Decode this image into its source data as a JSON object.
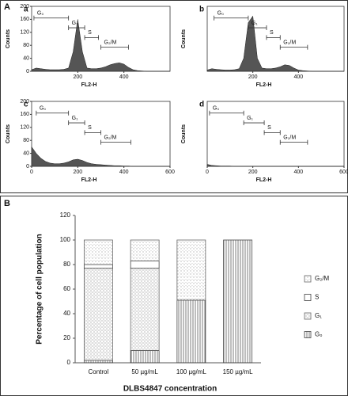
{
  "panel_labels": [
    "A",
    "B"
  ],
  "chart_data": [
    {
      "type": "area",
      "panel": "a",
      "xlabel": "FL2-H",
      "ylabel": "Counts",
      "color": "#555555",
      "x": [
        0,
        20,
        40,
        60,
        80,
        100,
        120,
        140,
        160,
        180,
        200,
        220,
        240,
        260,
        280,
        300,
        320,
        340,
        360,
        380,
        400,
        420,
        440,
        460,
        480,
        500,
        520,
        540,
        560,
        580,
        600
      ],
      "values": [
        5,
        10,
        8,
        6,
        5,
        5,
        5,
        6,
        10,
        60,
        160,
        60,
        10,
        8,
        8,
        10,
        14,
        20,
        24,
        26,
        22,
        12,
        5,
        2,
        1,
        0,
        0,
        0,
        0,
        0,
        0
      ],
      "xlim": [
        0,
        600
      ],
      "ylim": [
        0,
        200
      ],
      "xticks": [
        200,
        400
      ],
      "yticks": [
        0,
        40,
        80,
        120,
        160,
        200
      ],
      "gates": [
        {
          "label": "G₀",
          "range": [
            10,
            160
          ]
        },
        {
          "label": "G₁",
          "range": [
            160,
            230
          ]
        },
        {
          "label": "S",
          "range": [
            230,
            290
          ]
        },
        {
          "label": "G₂/M",
          "range": [
            300,
            420
          ]
        }
      ]
    },
    {
      "type": "area",
      "panel": "b",
      "xlabel": "FL2-H",
      "ylabel": "Counts",
      "color": "#555555",
      "x": [
        0,
        20,
        40,
        60,
        80,
        100,
        120,
        140,
        160,
        180,
        200,
        220,
        240,
        260,
        280,
        300,
        320,
        340,
        360,
        380,
        400,
        420,
        440,
        460,
        480,
        500,
        520,
        540,
        560,
        580,
        600
      ],
      "values": [
        4,
        8,
        6,
        5,
        4,
        4,
        5,
        8,
        40,
        150,
        170,
        40,
        10,
        8,
        8,
        10,
        14,
        20,
        18,
        10,
        4,
        2,
        1,
        0,
        0,
        0,
        0,
        0,
        0,
        0,
        0
      ],
      "xlim": [
        0,
        600
      ],
      "ylim": [
        0,
        200
      ],
      "xticks": [
        200,
        400
      ],
      "yticks": [],
      "gates": [
        {
          "label": "G₀",
          "range": [
            30,
            180
          ]
        },
        {
          "label": "G₁",
          "range": [
            180,
            260
          ]
        },
        {
          "label": "S",
          "range": [
            260,
            320
          ]
        },
        {
          "label": "G₂/M",
          "range": [
            320,
            440
          ]
        }
      ]
    },
    {
      "type": "area",
      "panel": "c",
      "xlabel": "FL2-H",
      "ylabel": "Counts",
      "color": "#555555",
      "x": [
        0,
        20,
        40,
        60,
        80,
        100,
        120,
        140,
        160,
        180,
        200,
        220,
        240,
        260,
        280,
        300,
        320,
        340,
        360,
        380,
        400,
        420,
        440,
        460,
        480,
        500,
        520,
        540,
        560,
        580,
        600
      ],
      "values": [
        60,
        40,
        25,
        15,
        10,
        8,
        8,
        10,
        14,
        20,
        22,
        18,
        12,
        8,
        6,
        5,
        4,
        3,
        2,
        2,
        1,
        1,
        0,
        0,
        0,
        0,
        0,
        0,
        0,
        0,
        0
      ],
      "xlim": [
        0,
        600
      ],
      "ylim": [
        0,
        200
      ],
      "xticks": [
        0,
        200,
        400,
        600
      ],
      "yticks": [
        0,
        40,
        80,
        120,
        160,
        200
      ],
      "gates": [
        {
          "label": "G₀",
          "range": [
            20,
            160
          ]
        },
        {
          "label": "G₁",
          "range": [
            160,
            230
          ]
        },
        {
          "label": "S",
          "range": [
            230,
            300
          ]
        },
        {
          "label": "G₂/M",
          "range": [
            300,
            430
          ]
        }
      ]
    },
    {
      "type": "area",
      "panel": "d",
      "xlabel": "FL2-H",
      "ylabel": "Counts",
      "color": "#555555",
      "x": [
        0,
        20,
        40,
        60,
        80,
        100,
        120,
        140,
        160,
        180,
        200,
        220,
        240,
        260,
        280,
        300,
        320,
        340,
        360,
        380,
        400,
        420,
        440,
        460,
        480,
        500,
        520,
        540,
        560,
        580,
        600
      ],
      "values": [
        6,
        3,
        2,
        1,
        1,
        1,
        0,
        0,
        0,
        0,
        0,
        0,
        0,
        0,
        0,
        0,
        0,
        0,
        0,
        0,
        0,
        0,
        0,
        0,
        0,
        0,
        0,
        0,
        0,
        0,
        0
      ],
      "xlim": [
        0,
        600
      ],
      "ylim": [
        0,
        200
      ],
      "xticks": [
        0,
        200,
        400,
        600
      ],
      "yticks": [],
      "gates": [
        {
          "label": "G₀",
          "range": [
            10,
            160
          ]
        },
        {
          "label": "G₁",
          "range": [
            160,
            250
          ]
        },
        {
          "label": "S",
          "range": [
            250,
            320
          ]
        },
        {
          "label": "G₂/M",
          "range": [
            320,
            440
          ]
        }
      ]
    },
    {
      "type": "stacked_bar",
      "ylabel": "Percentage of cell population",
      "xlabel": "DLBS4847 concentration",
      "categories": [
        "Control",
        "50 µg/mL",
        "100 µg/mL",
        "150 µg/mL"
      ],
      "series": [
        {
          "name": "G₀",
          "pattern": "vertical",
          "color": "#444444",
          "values": [
            2,
            10,
            51,
            100
          ]
        },
        {
          "name": "G₁",
          "pattern": "cross-dots",
          "color": "#666666",
          "values": [
            75,
            67,
            0,
            0
          ]
        },
        {
          "name": "S",
          "pattern": "none",
          "color": "#444444",
          "values": [
            3,
            6,
            0,
            0
          ]
        },
        {
          "name": "G₂/M",
          "pattern": "dots",
          "color": "#666666",
          "values": [
            20,
            17,
            49,
            0
          ]
        }
      ],
      "ylim": [
        0,
        120
      ],
      "yticks": [
        0,
        20,
        40,
        60,
        80,
        100,
        120
      ],
      "legend": "right"
    }
  ]
}
